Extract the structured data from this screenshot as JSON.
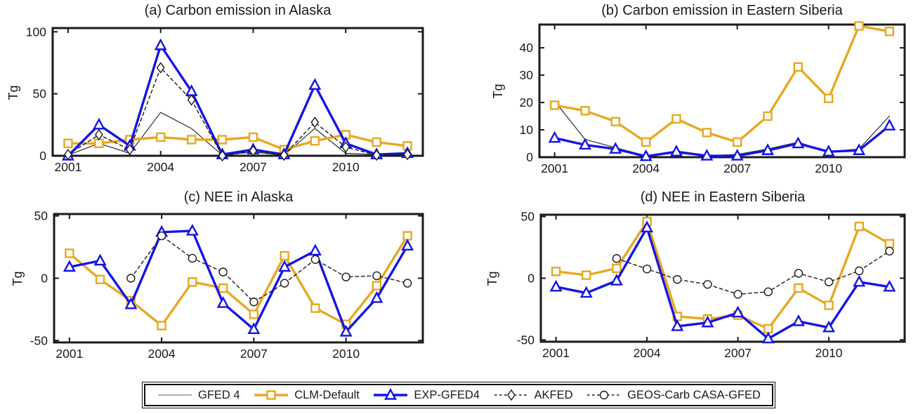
{
  "figure": {
    "background": "#ffffff",
    "unit": "Tg"
  },
  "styles": {
    "axis_color": "#1b1b1b",
    "tick_label_size": 17.5,
    "series_styles": {
      "GFED 4": {
        "color": "#2e2e2e",
        "legend_color": "#7a7a7a",
        "line_width": 1.2,
        "dash": "",
        "marker": "none"
      },
      "CLM-Default": {
        "color": "#E8A820",
        "line_width": 3.4,
        "dash": "",
        "marker": "square"
      },
      "EXP-GFED4": {
        "color": "#1414E6",
        "line_width": 3.4,
        "dash": "",
        "marker": "triangle"
      },
      "AKFED": {
        "color": "#1b1b1b",
        "line_width": 1.4,
        "dash": "4.5 4",
        "marker": "diamond"
      },
      "GEOS-Carb CASA-GFED": {
        "color": "#1b1b1b",
        "line_width": 1.4,
        "dash": "4.5 4",
        "marker": "circle"
      }
    }
  },
  "legend": {
    "items": [
      {
        "label": "GFED 4"
      },
      {
        "label": "CLM-Default"
      },
      {
        "label": "EXP-GFED4"
      },
      {
        "label": "AKFED"
      },
      {
        "label": "GEOS-Carb CASA-GFED"
      }
    ]
  },
  "chart_data": [
    {
      "id": "a",
      "type": "line",
      "title": "(a) Carbon emission in Alaska",
      "xlabel": "",
      "ylabel": "Tg",
      "x": [
        2001,
        2002,
        2003,
        2004,
        2005,
        2006,
        2007,
        2008,
        2009,
        2010,
        2011,
        2012
      ],
      "xlim": [
        2000.5,
        2012.5
      ],
      "ylim": [
        0,
        103
      ],
      "xticks": [
        2001,
        2004,
        2007,
        2010
      ],
      "yticks": [
        0,
        50,
        100
      ],
      "grid": false,
      "series": [
        {
          "name": "GFED 4",
          "values": [
            0.5,
            10,
            2,
            35,
            22,
            0.5,
            3,
            0.5,
            22,
            2,
            1,
            1
          ]
        },
        {
          "name": "CLM-Default",
          "values": [
            10,
            10,
            13,
            15,
            13,
            13,
            15,
            5,
            12,
            17,
            11,
            8
          ]
        },
        {
          "name": "EXP-GFED4",
          "values": [
            0,
            25,
            8,
            89,
            52,
            1,
            5,
            1,
            57,
            10,
            1,
            2
          ]
        },
        {
          "name": "AKFED",
          "values": [
            1,
            17,
            5,
            71,
            45,
            0,
            4,
            0.5,
            27,
            7,
            0.5,
            1
          ]
        }
      ]
    },
    {
      "id": "b",
      "type": "line",
      "title": "(b) Carbon emission in Eastern Siberia",
      "xlabel": "",
      "ylabel": "Tg",
      "x": [
        2001,
        2002,
        2003,
        2004,
        2005,
        2006,
        2007,
        2008,
        2009,
        2010,
        2011,
        2012
      ],
      "xlim": [
        2000.5,
        2012.5
      ],
      "ylim": [
        0,
        48.5
      ],
      "xticks": [
        2001,
        2004,
        2007,
        2010
      ],
      "yticks": [
        0,
        10,
        20,
        30,
        40
      ],
      "grid": false,
      "series": [
        {
          "name": "GFED 4",
          "values": [
            20.5,
            6.5,
            3.5,
            0.5,
            1.5,
            0.5,
            1,
            3,
            5.5,
            2,
            3,
            15
          ]
        },
        {
          "name": "CLM-Default",
          "values": [
            19,
            17,
            13,
            5.5,
            14,
            9,
            5.5,
            15,
            33,
            21.5,
            48,
            46
          ]
        },
        {
          "name": "EXP-GFED4",
          "values": [
            7,
            4.5,
            3,
            0.3,
            2,
            0.5,
            0.5,
            2.5,
            5,
            2,
            2.5,
            11.5
          ]
        }
      ]
    },
    {
      "id": "c",
      "type": "line",
      "title": "(c) NEE in Alaska",
      "xlabel": "",
      "ylabel": "Tg",
      "x": [
        2001,
        2002,
        2003,
        2004,
        2005,
        2006,
        2007,
        2008,
        2009,
        2010,
        2011,
        2012
      ],
      "xlim": [
        2000.5,
        2012.5
      ],
      "ylim": [
        -51.5,
        51.5
      ],
      "xticks": [
        2001,
        2004,
        2007,
        2010
      ],
      "yticks": [
        -50,
        0,
        50
      ],
      "grid": false,
      "series": [
        {
          "name": "CLM-Default",
          "values": [
            20,
            -1,
            -18,
            -38,
            -3,
            -8,
            -29,
            18,
            -24,
            -37,
            -6,
            34
          ]
        },
        {
          "name": "EXP-GFED4",
          "values": [
            9,
            14,
            -21,
            37,
            38,
            -20,
            -41,
            9,
            22,
            -43,
            -16,
            26
          ]
        },
        {
          "name": "GEOS-Carb CASA-GFED",
          "values": [
            null,
            null,
            0,
            34,
            16,
            5,
            -19,
            -4,
            15,
            1,
            2,
            -4
          ]
        }
      ]
    },
    {
      "id": "d",
      "type": "line",
      "title": "(d) NEE in Eastern Siberia",
      "xlabel": "",
      "ylabel": "Tg",
      "x": [
        2001,
        2002,
        2003,
        2004,
        2005,
        2006,
        2007,
        2008,
        2009,
        2010,
        2011,
        2012
      ],
      "xlim": [
        2000.5,
        2012.5
      ],
      "ylim": [
        -51.5,
        51.5
      ],
      "xticks": [
        2001,
        2004,
        2007,
        2010
      ],
      "yticks": [
        -50,
        0,
        50
      ],
      "grid": false,
      "series": [
        {
          "name": "CLM-Default",
          "values": [
            5.5,
            2.5,
            8,
            46,
            -31,
            -33,
            -30,
            -41,
            -8,
            -22,
            42,
            28
          ]
        },
        {
          "name": "EXP-GFED4",
          "values": [
            -7,
            -12,
            -2,
            41,
            -39,
            -36,
            -28,
            -49,
            -35,
            -40,
            -3,
            -7
          ]
        },
        {
          "name": "GEOS-Carb CASA-GFED",
          "values": [
            null,
            null,
            16,
            7.5,
            -1,
            -5,
            -13,
            -11,
            4,
            -3,
            6,
            22
          ]
        }
      ]
    }
  ]
}
